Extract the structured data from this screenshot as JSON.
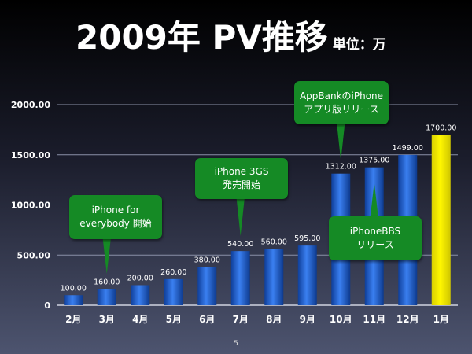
{
  "title": {
    "main": "2009年 PV推移",
    "unit": "単位：万"
  },
  "chart_data": {
    "type": "bar",
    "title": "2009年 PV推移",
    "ylabel": "",
    "xlabel": "",
    "ylim": [
      0,
      2000
    ],
    "yticks": [
      0,
      500,
      1000,
      1500,
      2000
    ],
    "ytick_labels": [
      "0",
      "500.00",
      "1000.00",
      "1500.00",
      "2000.00"
    ],
    "grid": true,
    "categories": [
      "2月",
      "3月",
      "4月",
      "5月",
      "6月",
      "7月",
      "8月",
      "9月",
      "10月",
      "11月",
      "12月",
      "1月"
    ],
    "values": [
      100,
      160,
      200,
      260,
      380,
      540,
      560,
      595,
      1312,
      1375,
      1499,
      1700
    ],
    "value_labels": [
      "100.00",
      "160.00",
      "200.00",
      "260.00",
      "380.00",
      "540.00",
      "560.00",
      "595.00",
      "1312.00",
      "1375.00",
      "1499.00",
      "1700.00"
    ],
    "bar_colors": [
      "#1f5fd0",
      "#1f5fd0",
      "#1f5fd0",
      "#1f5fd0",
      "#1f5fd0",
      "#1f5fd0",
      "#1f5fd0",
      "#1f5fd0",
      "#1f5fd0",
      "#1f5fd0",
      "#1f5fd0",
      "#f5ee00"
    ],
    "annotations": [
      {
        "lines": [
          "iPhone for",
          "everybody 開始"
        ],
        "category": "3月"
      },
      {
        "lines": [
          "iPhone 3GS",
          "発売開始"
        ],
        "category": "7月"
      },
      {
        "lines": [
          "AppBankのiPhone",
          "アプリ版リリース"
        ],
        "category": "10月"
      },
      {
        "lines": [
          "iPhoneBBS",
          "リリース"
        ],
        "category": "11月"
      }
    ]
  },
  "page_number": "5"
}
